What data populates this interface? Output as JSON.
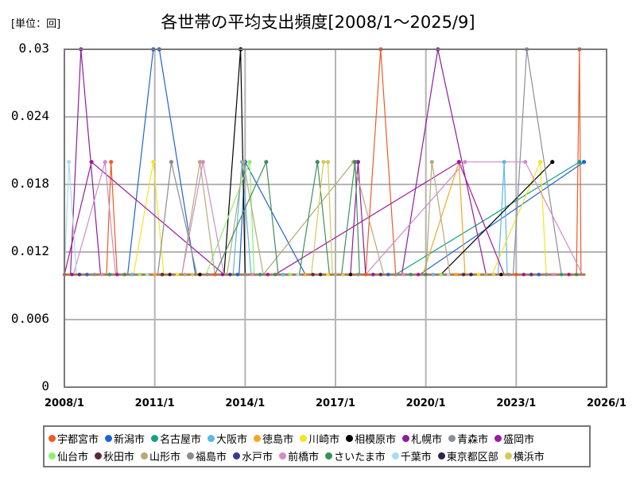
{
  "header": {
    "unit_label": "[単位：回]",
    "title": "各世帯の平均支出頻度[2008/1～2025/9]"
  },
  "chart_data": {
    "type": "line",
    "title": "各世帯の平均支出頻度[2008/1～2025/9]",
    "unit": "[単位：回]",
    "xlabel": "",
    "ylabel": "",
    "xlim": [
      "2008/1",
      "2026/1"
    ],
    "ylim": [
      0,
      0.03
    ],
    "grid": true,
    "legend_position": "bottom",
    "y_ticks": [
      "0",
      "0.006",
      "0.012",
      "0.018",
      "0.024",
      "0.03"
    ],
    "y_tick_values": [
      0,
      0.006,
      0.012,
      0.018,
      0.024,
      0.03
    ],
    "x_ticks": [
      "2008/1",
      "2011/1",
      "2014/1",
      "2017/1",
      "2020/1",
      "2023/1",
      "2026/1"
    ],
    "x_tick_years": [
      2008,
      2011,
      2014,
      2017,
      2020,
      2023,
      2026
    ],
    "baseline_value": 0.01,
    "note": "Most months sit at 0.01 for all series; values below list the non-baseline points (year as decimal, value). Lines connect consecutive plotted points of each series.",
    "series": [
      {
        "name": "宇都宮市",
        "color": "#f15a22",
        "points": [
          [
            2008.0,
            0.01
          ],
          [
            2009.4,
            0.01
          ],
          [
            2009.55,
            0.02
          ],
          [
            2009.75,
            0.01
          ],
          [
            2018.0,
            0.01
          ],
          [
            2018.5,
            0.03
          ],
          [
            2019.0,
            0.01
          ],
          [
            2025.0,
            0.01
          ],
          [
            2025.1,
            0.03
          ],
          [
            2025.15,
            0.01
          ]
        ]
      },
      {
        "name": "新潟市",
        "color": "#1f62d8",
        "points": [
          [
            2008.0,
            0.01
          ],
          [
            2010.1,
            0.01
          ],
          [
            2010.95,
            0.03
          ],
          [
            2011.15,
            0.03
          ],
          [
            2012.35,
            0.01
          ],
          [
            2013.8,
            0.01
          ],
          [
            2014.0,
            0.02
          ],
          [
            2016.0,
            0.01
          ],
          [
            2019.8,
            0.01
          ],
          [
            2025.25,
            0.02
          ]
        ]
      },
      {
        "name": "名古屋市",
        "color": "#16a085",
        "points": [
          [
            2008.0,
            0.01
          ],
          [
            2019.0,
            0.01
          ],
          [
            2025.1,
            0.02
          ]
        ]
      },
      {
        "name": "大阪市",
        "color": "#5bb8e8",
        "points": [
          [
            2008.0,
            0.01
          ],
          [
            2013.6,
            0.01
          ],
          [
            2013.9,
            0.02
          ],
          [
            2014.2,
            0.01
          ],
          [
            2022.4,
            0.01
          ],
          [
            2022.6,
            0.02
          ],
          [
            2022.7,
            0.01
          ]
        ]
      },
      {
        "name": "徳島市",
        "color": "#f5a623",
        "points": [
          [
            2008.0,
            0.01
          ],
          [
            2019.9,
            0.01
          ],
          [
            2021.1,
            0.02
          ],
          [
            2021.3,
            0.01
          ]
        ]
      },
      {
        "name": "川崎市",
        "color": "#f7e31f",
        "points": [
          [
            2008.0,
            0.01
          ],
          [
            2010.3,
            0.01
          ],
          [
            2010.95,
            0.02
          ],
          [
            2011.3,
            0.01
          ],
          [
            2022.2,
            0.01
          ],
          [
            2023.8,
            0.02
          ],
          [
            2024.0,
            0.01
          ]
        ]
      },
      {
        "name": "相模原市",
        "color": "#000000",
        "points": [
          [
            2008.0,
            0.01
          ],
          [
            2013.3,
            0.01
          ],
          [
            2013.85,
            0.03
          ],
          [
            2014.0,
            0.01
          ],
          [
            2020.5,
            0.01
          ],
          [
            2024.2,
            0.02
          ]
        ]
      },
      {
        "name": "札幌市",
        "color": "#8e1c9e",
        "points": [
          [
            2008.0,
            0.01
          ],
          [
            2008.2,
            0.01
          ],
          [
            2008.55,
            0.03
          ],
          [
            2009.2,
            0.01
          ],
          [
            2017.5,
            0.01
          ],
          [
            2017.75,
            0.02
          ],
          [
            2018.0,
            0.01
          ],
          [
            2019.2,
            0.01
          ],
          [
            2020.4,
            0.03
          ],
          [
            2022.0,
            0.01
          ],
          [
            2023.0,
            0.01
          ]
        ]
      },
      {
        "name": "青森市",
        "color": "#8a9099",
        "points": [
          [
            2008.0,
            0.01
          ],
          [
            2022.9,
            0.01
          ],
          [
            2023.35,
            0.03
          ],
          [
            2024.5,
            0.01
          ]
        ]
      },
      {
        "name": "盛岡市",
        "color": "#a0189f",
        "points": [
          [
            2008.0,
            0.01
          ],
          [
            2008.9,
            0.02
          ],
          [
            2013.3,
            0.01
          ],
          [
            2015.0,
            0.01
          ],
          [
            2021.1,
            0.02
          ],
          [
            2022.6,
            0.01
          ],
          [
            2024.2,
            0.01
          ]
        ]
      },
      {
        "name": "仙台市",
        "color": "#8fef6a",
        "points": [
          [
            2008.0,
            0.01
          ],
          [
            2012.7,
            0.01
          ],
          [
            2014.15,
            0.02
          ],
          [
            2014.3,
            0.01
          ]
        ]
      },
      {
        "name": "秋田市",
        "color": "#5a2a3a",
        "points": [
          [
            2008.0,
            0.01
          ],
          [
            2024.8,
            0.01
          ]
        ]
      },
      {
        "name": "山形市",
        "color": "#b5a97a",
        "points": [
          [
            2008.0,
            0.01
          ],
          [
            2011.9,
            0.01
          ],
          [
            2012.5,
            0.02
          ],
          [
            2013.0,
            0.01
          ],
          [
            2013.4,
            0.01
          ],
          [
            2013.95,
            0.02
          ],
          [
            2014.6,
            0.01
          ],
          [
            2017.6,
            0.02
          ],
          [
            2018.6,
            0.01
          ],
          [
            2020.0,
            0.01
          ],
          [
            2020.2,
            0.02
          ],
          [
            2020.8,
            0.01
          ]
        ]
      },
      {
        "name": "福島市",
        "color": "#8c8c8c",
        "points": [
          [
            2008.0,
            0.01
          ],
          [
            2011.1,
            0.01
          ],
          [
            2011.55,
            0.02
          ],
          [
            2012.4,
            0.01
          ]
        ]
      },
      {
        "name": "水戸市",
        "color": "#3b3b8a",
        "points": [
          [
            2008.0,
            0.01
          ],
          [
            2024.8,
            0.01
          ]
        ]
      },
      {
        "name": "前橋市",
        "color": "#d08cc8",
        "points": [
          [
            2008.0,
            0.01
          ],
          [
            2008.3,
            0.01
          ],
          [
            2009.35,
            0.02
          ],
          [
            2009.7,
            0.01
          ],
          [
            2011.9,
            0.01
          ],
          [
            2012.6,
            0.02
          ],
          [
            2013.3,
            0.01
          ],
          [
            2018.0,
            0.01
          ],
          [
            2021.3,
            0.02
          ],
          [
            2023.3,
            0.02
          ],
          [
            2025.2,
            0.01
          ]
        ]
      },
      {
        "name": "さいたま市",
        "color": "#3e8e5a",
        "points": [
          [
            2008.0,
            0.01
          ],
          [
            2013.0,
            0.01
          ],
          [
            2014.7,
            0.02
          ],
          [
            2015.1,
            0.01
          ],
          [
            2015.8,
            0.01
          ],
          [
            2016.4,
            0.02
          ],
          [
            2016.8,
            0.01
          ],
          [
            2017.2,
            0.01
          ],
          [
            2017.65,
            0.02
          ],
          [
            2017.8,
            0.01
          ]
        ]
      },
      {
        "name": "千葉市",
        "color": "#a8dcee",
        "points": [
          [
            2008.0,
            0.01
          ],
          [
            2008.15,
            0.02
          ],
          [
            2008.4,
            0.01
          ]
        ]
      },
      {
        "name": "東京都区部",
        "color": "#2e2445",
        "points": [
          [
            2008.0,
            0.01
          ],
          [
            2024.8,
            0.01
          ]
        ]
      },
      {
        "name": "横浜市",
        "color": "#d4c95a",
        "points": [
          [
            2008.0,
            0.01
          ],
          [
            2016.2,
            0.01
          ],
          [
            2016.6,
            0.02
          ],
          [
            2016.75,
            0.02
          ],
          [
            2016.9,
            0.01
          ]
        ]
      }
    ]
  },
  "legend": {
    "rows": [
      [
        {
          "label": "宇都宮市",
          "color": "#f15a22"
        },
        {
          "label": "新潟市",
          "color": "#1f62d8"
        },
        {
          "label": "名古屋市",
          "color": "#16a085"
        },
        {
          "label": "大阪市",
          "color": "#5bb8e8"
        },
        {
          "label": "徳島市",
          "color": "#f5a623"
        },
        {
          "label": "川崎市",
          "color": "#f7e31f"
        },
        {
          "label": "相模原市",
          "color": "#000000"
        },
        {
          "label": "札幌市",
          "color": "#8e1c9e"
        },
        {
          "label": "青森市",
          "color": "#8a9099"
        },
        {
          "label": "盛岡市",
          "color": "#a0189f"
        }
      ],
      [
        {
          "label": "仙台市",
          "color": "#8fef6a"
        },
        {
          "label": "秋田市",
          "color": "#5a2a3a"
        },
        {
          "label": "山形市",
          "color": "#b5a97a"
        },
        {
          "label": "福島市",
          "color": "#8c8c8c"
        },
        {
          "label": "水戸市",
          "color": "#3b3b8a"
        },
        {
          "label": "前橋市",
          "color": "#d08cc8"
        },
        {
          "label": "さいたま市",
          "color": "#3e8e5a"
        },
        {
          "label": "千葉市",
          "color": "#a8dcee"
        },
        {
          "label": "東京都区部",
          "color": "#2e2445"
        },
        {
          "label": "横浜市",
          "color": "#d4c95a"
        }
      ]
    ]
  },
  "layout_colors": {
    "grid": "#b4b4b4",
    "frame": "#7a7a7a",
    "baseline": "#b07c55"
  }
}
